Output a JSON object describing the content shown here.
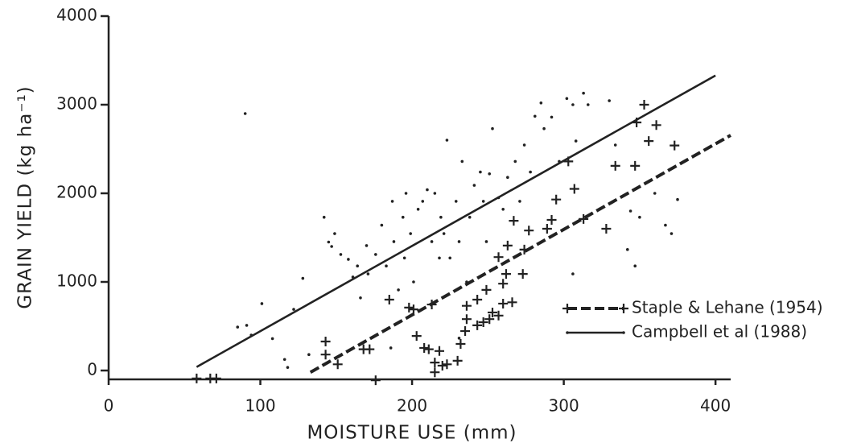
{
  "chart_data": {
    "type": "scatter",
    "xlabel": "MOISTURE USE (mm)",
    "ylabel": "GRAIN YIELD (kg ha⁻¹)",
    "xlim": [
      0,
      410
    ],
    "ylim": [
      -100,
      4000
    ],
    "xticks": [
      0,
      100,
      200,
      300,
      400
    ],
    "yticks": [
      0,
      1000,
      2000,
      3000,
      4000
    ],
    "legend": "lower right",
    "series": [
      {
        "name": "Staple & Lehane (1954)",
        "color": "#222",
        "marker": "plus",
        "linestyle": "dashed",
        "x": [
          58,
          67,
          71,
          176,
          143,
          143,
          151,
          168,
          172,
          185,
          198,
          201,
          203,
          208,
          211,
          213,
          215,
          215,
          218,
          220,
          223,
          230,
          232,
          235,
          236,
          236,
          243,
          243,
          247,
          251,
          249,
          253,
          257,
          260,
          257,
          260,
          262,
          263,
          266,
          267,
          273,
          274,
          277,
          289,
          292,
          295,
          303,
          307,
          313,
          328,
          334,
          347,
          348,
          353,
          356,
          361,
          373
        ],
        "values": [
          -90,
          -90,
          -90,
          -110,
          327,
          180,
          70,
          240,
          240,
          800,
          710,
          690,
          390,
          255,
          240,
          745,
          -20,
          90,
          220,
          55,
          70,
          110,
          300,
          445,
          580,
          730,
          800,
          510,
          545,
          580,
          910,
          655,
          620,
          755,
          1280,
          980,
          1090,
          1410,
          770,
          1690,
          1090,
          1365,
          1580,
          1600,
          1700,
          1930,
          2360,
          2050,
          1710,
          1600,
          2310,
          2310,
          2800,
          3000,
          2590,
          2770,
          2540
        ],
        "fit": {
          "x": [
            133,
            410
          ],
          "y": [
            -20,
            2655
          ]
        }
      },
      {
        "name": "Campbell et al (1988)",
        "color": "#222",
        "marker": "dot",
        "linestyle": "solid",
        "x": [
          90,
          85,
          91,
          101,
          94,
          108,
          116,
          118,
          122,
          128,
          132,
          142,
          145,
          147,
          149,
          153,
          158,
          161,
          164,
          166,
          170,
          171,
          176,
          180,
          183,
          187,
          188,
          191,
          194,
          195,
          196,
          199,
          201,
          204,
          207,
          210,
          213,
          215,
          218,
          219,
          221,
          223,
          225,
          229,
          231,
          233,
          238,
          241,
          245,
          247,
          249,
          251,
          253,
          257,
          260,
          263,
          268,
          271,
          274,
          278,
          281,
          285,
          287,
          292,
          297,
          302,
          306,
          308,
          313,
          316,
          330,
          334,
          344,
          350,
          360,
          367,
          375,
          371,
          306,
          342,
          347,
          231,
          236,
          186
        ],
        "values": [
          2900,
          490,
          510,
          755,
          400,
          360,
          125,
          35,
          690,
          1040,
          180,
          1730,
          1450,
          1400,
          1545,
          1310,
          1255,
          1055,
          1180,
          820,
          1410,
          1090,
          1310,
          1640,
          1180,
          1910,
          1455,
          910,
          1730,
          1270,
          2000,
          1545,
          1000,
          1820,
          1910,
          2040,
          1455,
          2000,
          1270,
          1730,
          1545,
          2600,
          1270,
          1910,
          1455,
          2360,
          1730,
          2090,
          2240,
          1910,
          1455,
          2220,
          2730,
          1950,
          1820,
          2180,
          2360,
          1910,
          2545,
          2240,
          2870,
          3020,
          2730,
          2860,
          2360,
          3070,
          3000,
          2590,
          3130,
          3000,
          3045,
          2545,
          1800,
          1730,
          2000,
          1640,
          1930,
          1545,
          1090,
          1365,
          1180,
          365,
          1000,
          255
        ],
        "fit": {
          "x": [
            58,
            400
          ],
          "y": [
            40,
            3330
          ]
        }
      }
    ]
  }
}
